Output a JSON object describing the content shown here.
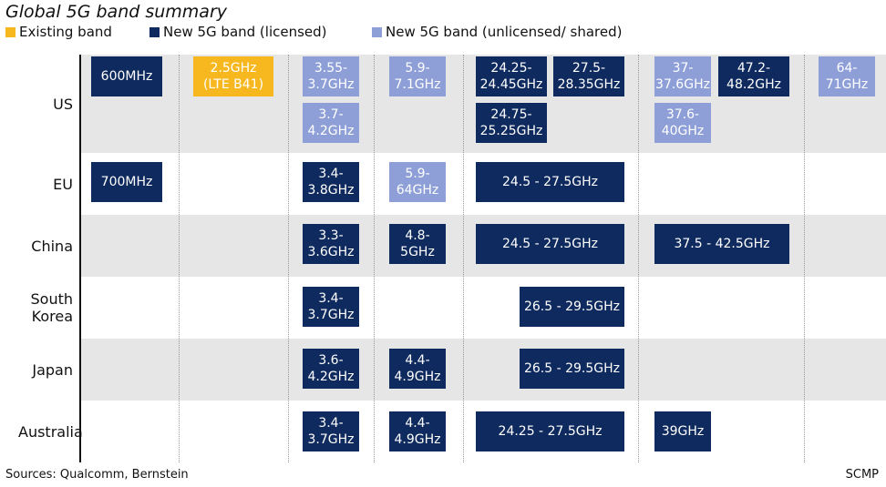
{
  "title": "Global 5G band summary",
  "legend": [
    {
      "label": "Existing band",
      "color": "#f7b81f"
    },
    {
      "label": "New 5G band (licensed)",
      "color": "#0f2a5e"
    },
    {
      "label": "New 5G band (unlicensed/ shared)",
      "color": "#8e9fd8"
    }
  ],
  "rows": [
    {
      "country": "US",
      "bands": [
        {
          "lines": [
            "600MHz"
          ],
          "color": "#0f2a5e"
        },
        {
          "lines": [
            "2.5GHz",
            "(LTE B41)"
          ],
          "color": "#f7b81f"
        },
        {
          "lines": [
            "3.55-",
            "3.7GHz"
          ],
          "color": "#8e9fd8"
        },
        {
          "lines": [
            "3.7-",
            "4.2GHz"
          ],
          "color": "#8e9fd8"
        },
        {
          "lines": [
            "5.9-",
            "7.1GHz"
          ],
          "color": "#8e9fd8"
        },
        {
          "lines": [
            "24.25-",
            "24.45GHz"
          ],
          "color": "#0f2a5e"
        },
        {
          "lines": [
            "27.5-",
            "28.35GHz"
          ],
          "color": "#0f2a5e"
        },
        {
          "lines": [
            "24.75-",
            "25.25GHz"
          ],
          "color": "#0f2a5e"
        },
        {
          "lines": [
            "37-",
            "37.6GHz"
          ],
          "color": "#8e9fd8"
        },
        {
          "lines": [
            "47.2-",
            "48.2GHz"
          ],
          "color": "#0f2a5e"
        },
        {
          "lines": [
            "37.6-",
            "40GHz"
          ],
          "color": "#8e9fd8"
        },
        {
          "lines": [
            "64-",
            "71GHz"
          ],
          "color": "#8e9fd8"
        }
      ]
    },
    {
      "country": "EU",
      "bands": [
        {
          "lines": [
            "700MHz"
          ],
          "color": "#0f2a5e"
        },
        {
          "lines": [
            "3.4-",
            "3.8GHz"
          ],
          "color": "#0f2a5e"
        },
        {
          "lines": [
            "5.9-",
            "64GHz"
          ],
          "color": "#8e9fd8"
        },
        {
          "lines": [
            "24.5 - 27.5GHz"
          ],
          "color": "#0f2a5e"
        }
      ]
    },
    {
      "country": "China",
      "bands": [
        {
          "lines": [
            "3.3-",
            "3.6GHz"
          ],
          "color": "#0f2a5e"
        },
        {
          "lines": [
            "4.8-",
            "5GHz"
          ],
          "color": "#0f2a5e"
        },
        {
          "lines": [
            "24.5 - 27.5GHz"
          ],
          "color": "#0f2a5e"
        },
        {
          "lines": [
            "37.5 - 42.5GHz"
          ],
          "color": "#0f2a5e"
        }
      ]
    },
    {
      "country": "South Korea",
      "bands": [
        {
          "lines": [
            "3.4-",
            "3.7GHz"
          ],
          "color": "#0f2a5e"
        },
        {
          "lines": [
            "26.5 - 29.5GHz"
          ],
          "color": "#0f2a5e"
        }
      ]
    },
    {
      "country": "Japan",
      "bands": [
        {
          "lines": [
            "3.6-",
            "4.2GHz"
          ],
          "color": "#0f2a5e"
        },
        {
          "lines": [
            "4.4-",
            "4.9GHz"
          ],
          "color": "#0f2a5e"
        },
        {
          "lines": [
            "26.5 - 29.5GHz"
          ],
          "color": "#0f2a5e"
        }
      ]
    },
    {
      "country": "Australia",
      "bands": [
        {
          "lines": [
            "3.4-",
            "3.7GHz"
          ],
          "color": "#0f2a5e"
        },
        {
          "lines": [
            "4.4-",
            "4.9GHz"
          ],
          "color": "#0f2a5e"
        },
        {
          "lines": [
            "24.25 - 27.5GHz"
          ],
          "color": "#0f2a5e"
        },
        {
          "lines": [
            "39GHz"
          ],
          "color": "#0f2a5e"
        }
      ]
    }
  ],
  "footer": {
    "source": "Sources: Qualcomm, Bernstein",
    "credit": "SCMP"
  }
}
